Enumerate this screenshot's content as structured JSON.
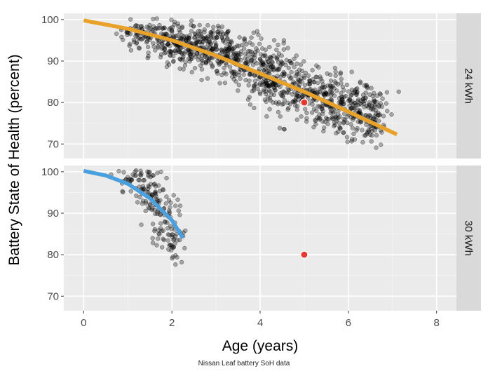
{
  "chart_data": {
    "type": "scatter",
    "title": "",
    "xlabel": "Age (years)",
    "ylabel": "Battery State of Health (percent)",
    "xlim": [
      -0.45,
      8.45
    ],
    "x_ticks": [
      0,
      2,
      4,
      6,
      8
    ],
    "grid": true,
    "facet_layout": "vertical, strip labels on right",
    "panels": [
      {
        "strip_label": "24 kWh",
        "ylim": [
          66.5,
          101.5
        ],
        "y_ticks": [
          70,
          80,
          90,
          100
        ],
        "scatter_color": "#000000",
        "scatter_alpha": 0.3,
        "scatter_points_summary": "about 1,200 individual vehicle readings, Age 0.8 to 7.1 years, SoH 66 to 100 percent; the approximate cluster centres, counts and spreads below reproduce the cloud",
        "scatter_clusters": [
          {
            "x": 1.3,
            "y": 96.5,
            "count": 70,
            "x_spread": 0.25,
            "y_spread": 1.5
          },
          {
            "x": 1.9,
            "y": 94.5,
            "count": 110,
            "x_spread": 0.25,
            "y_spread": 2.0
          },
          {
            "x": 2.5,
            "y": 93.5,
            "count": 150,
            "x_spread": 0.25,
            "y_spread": 2.6
          },
          {
            "x": 3.1,
            "y": 92.0,
            "count": 130,
            "x_spread": 0.25,
            "y_spread": 3.0
          },
          {
            "x": 3.7,
            "y": 89.5,
            "count": 120,
            "x_spread": 0.25,
            "y_spread": 3.3
          },
          {
            "x": 4.3,
            "y": 86.0,
            "count": 150,
            "x_spread": 0.25,
            "y_spread": 3.6
          },
          {
            "x": 4.9,
            "y": 83.0,
            "count": 120,
            "x_spread": 0.25,
            "y_spread": 3.6
          },
          {
            "x": 5.5,
            "y": 80.5,
            "count": 130,
            "x_spread": 0.25,
            "y_spread": 3.6
          },
          {
            "x": 6.1,
            "y": 78.5,
            "count": 140,
            "x_spread": 0.25,
            "y_spread": 3.6
          },
          {
            "x": 6.6,
            "y": 76.5,
            "count": 80,
            "x_spread": 0.2,
            "y_spread": 3.2
          }
        ],
        "trend_line": {
          "color": "#E8A22A",
          "x": [
            0,
            1,
            2,
            3,
            4,
            5,
            6,
            7.1
          ],
          "y": [
            99.8,
            97.8,
            95.0,
            91.3,
            87.0,
            82.6,
            77.8,
            72.3
          ]
        },
        "highlight_point": {
          "x": 5.0,
          "y": 80.0,
          "color": "#E8372E"
        }
      },
      {
        "strip_label": "30 kWh",
        "ylim": [
          66.5,
          101.5
        ],
        "y_ticks": [
          70,
          80,
          90,
          100
        ],
        "scatter_color": "#000000",
        "scatter_alpha": 0.3,
        "scatter_points_summary": "about 200 individual vehicle readings, Age 0.9 to 2.2 years, SoH 74 to 100 percent; the approximate cluster centres, counts and spreads below reproduce the cloud",
        "scatter_clusters": [
          {
            "x": 1.1,
            "y": 98.5,
            "count": 30,
            "x_spread": 0.15,
            "y_spread": 1.5
          },
          {
            "x": 1.45,
            "y": 95.0,
            "count": 55,
            "x_spread": 0.15,
            "y_spread": 3.0
          },
          {
            "x": 1.75,
            "y": 90.0,
            "count": 60,
            "x_spread": 0.15,
            "y_spread": 4.0
          },
          {
            "x": 2.05,
            "y": 83.5,
            "count": 45,
            "x_spread": 0.12,
            "y_spread": 3.5
          }
        ],
        "trend_line": {
          "color": "#4A9FDF",
          "x": [
            0,
            0.5,
            1.0,
            1.5,
            2.0,
            2.25
          ],
          "y": [
            100.2,
            99.1,
            97.1,
            93.6,
            88.3,
            84.0
          ]
        },
        "highlight_point": {
          "x": 5.0,
          "y": 80.0,
          "color": "#E8372E"
        }
      }
    ]
  },
  "caption": "Nissan Leaf battery SoH data"
}
